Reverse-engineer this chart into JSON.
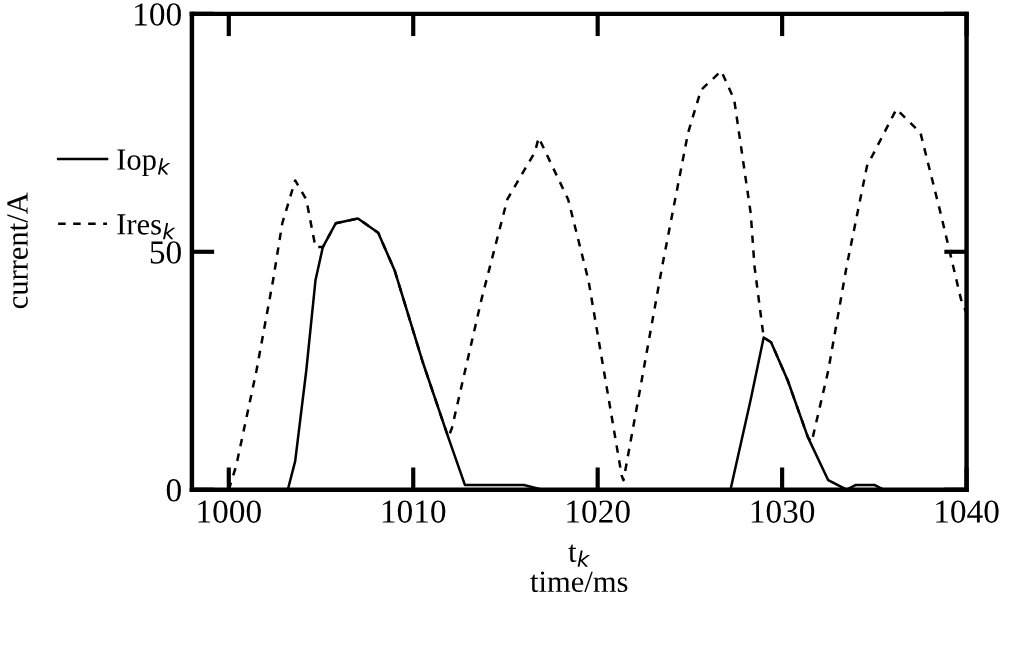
{
  "chart_data": {
    "type": "line",
    "xlabel": "t$_{k}$\ntime/ms",
    "ylabel": "current/A",
    "xlim": [
      998,
      1040
    ],
    "xticks": [
      1000,
      1010,
      1020,
      1030,
      1040
    ],
    "ylim": [
      0,
      100
    ],
    "yticks": [
      0,
      50,
      100
    ],
    "grid": false,
    "legend": "left",
    "marker": "none",
    "series": [
      {
        "name": "Iop$_{k}$",
        "color": "#000000",
        "line_style": "solid",
        "x": [
          998,
          1003.2,
          1003.6,
          1004.2,
          1004.7,
          1005.1,
          1005.8,
          1007.0,
          1008.1,
          1009.0,
          1010.5,
          1011.9,
          1012.8,
          1014,
          1016,
          1017,
          1027.2,
          1028.3,
          1029.0,
          1029.4,
          1030.3,
          1031.4,
          1032.5,
          1033.5,
          1034,
          1035,
          1035.5,
          1040
        ],
        "values": [
          0,
          0,
          6,
          25,
          44,
          51,
          56,
          57,
          54,
          46,
          27,
          11,
          1,
          1,
          1,
          0,
          0,
          19,
          32,
          31,
          23,
          11,
          2,
          0,
          1,
          1,
          0,
          0
        ]
      },
      {
        "name": "Ires$_{k}$",
        "color": "#000000",
        "line_style": "dashed",
        "x": [
          1000,
          1000.4,
          1001.5,
          1002.4,
          1002.9,
          1003.6,
          1004.2,
          1004.7,
          1005.1,
          1005.8,
          1007.0,
          1008.1,
          1009.0,
          1010.5,
          1011.9,
          1012.1,
          1013.7,
          1015.1,
          1016.6,
          1016.8,
          1018.4,
          1019.5,
          1020.6,
          1021.3,
          1021.4,
          1022.2,
          1023.5,
          1024.9,
          1025.6,
          1026.7,
          1027.4,
          1028.3,
          1028.5,
          1029.0,
          1029.4,
          1030.3,
          1031.4,
          1031.6,
          1032.5,
          1033.5,
          1034.6,
          1036.2,
          1037.5,
          1038.6,
          1039.7,
          1040
        ],
        "values": [
          0,
          5,
          25,
          44,
          56,
          65,
          61,
          51,
          51,
          56,
          57,
          54,
          46,
          27,
          11,
          13,
          40,
          61,
          71,
          74,
          61,
          44,
          19,
          3,
          2,
          19,
          47,
          75,
          84,
          88,
          82,
          58,
          47,
          32,
          31,
          23,
          11,
          10,
          25,
          47,
          68,
          80,
          75,
          58,
          40,
          37
        ]
      }
    ]
  }
}
